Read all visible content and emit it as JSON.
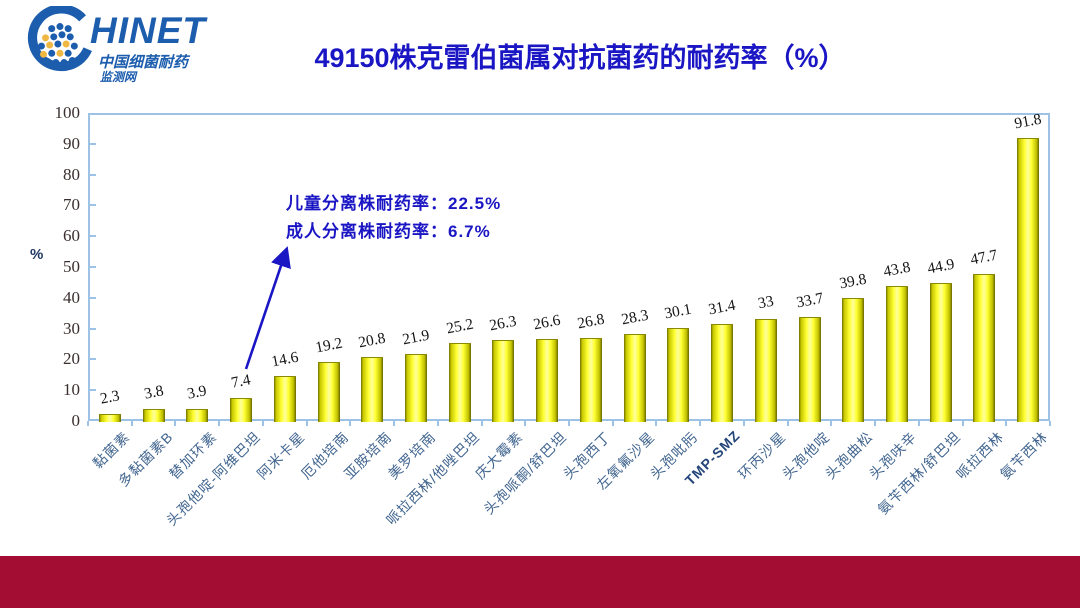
{
  "logo": {
    "wordmark": "HINET",
    "subtitle1": "中国细菌耐药",
    "subtitle2": "监测网",
    "brand_color": "#1d5dad",
    "dot_accent_color": "#efb842"
  },
  "page": {
    "background_color": "#ffffff",
    "bottom_band_color": "#a30d33"
  },
  "chart_data": {
    "type": "bar",
    "title": "49150株克雷伯菌属对抗菌药的耐药率（%）",
    "xlabel": "",
    "ylabel": "%",
    "ylim": [
      0,
      100
    ],
    "ytick_step": 10,
    "grid": false,
    "legend": "none",
    "categories": [
      "黏菌素",
      "多黏菌素B",
      "替加环素",
      "头孢他啶-阿维巴坦",
      "阿米卡星",
      "厄他培南",
      "亚胺培南",
      "美罗培南",
      "哌拉西林/他唑巴坦",
      "庆大霉素",
      "头孢哌酮/舒巴坦",
      "头孢西丁",
      "左氧氟沙星",
      "头孢吡肟",
      "TMP-SMZ",
      "环丙沙星",
      "头孢他啶",
      "头孢曲松",
      "头孢呋辛",
      "氨苄西林/舒巴坦",
      "哌拉西林",
      "氨苄西林"
    ],
    "values": [
      2.3,
      3.8,
      3.9,
      7.4,
      14.6,
      19.2,
      20.8,
      21.9,
      25.2,
      26.3,
      26.6,
      26.8,
      28.3,
      30.1,
      31.4,
      33,
      33.7,
      39.8,
      43.8,
      44.9,
      47.7,
      91.8
    ],
    "emphasized_category": "TMP-SMZ",
    "bar_edge_color": "#6e6e00",
    "bar_center_color": "#ffff33",
    "axis_color": "#9cc2e5",
    "annotations": [
      "儿童分离株耐药率：22.5%",
      "成人分离株耐药率：6.7%"
    ],
    "annotation_arrow_target_category": "头孢他啶-阿维巴坦"
  }
}
